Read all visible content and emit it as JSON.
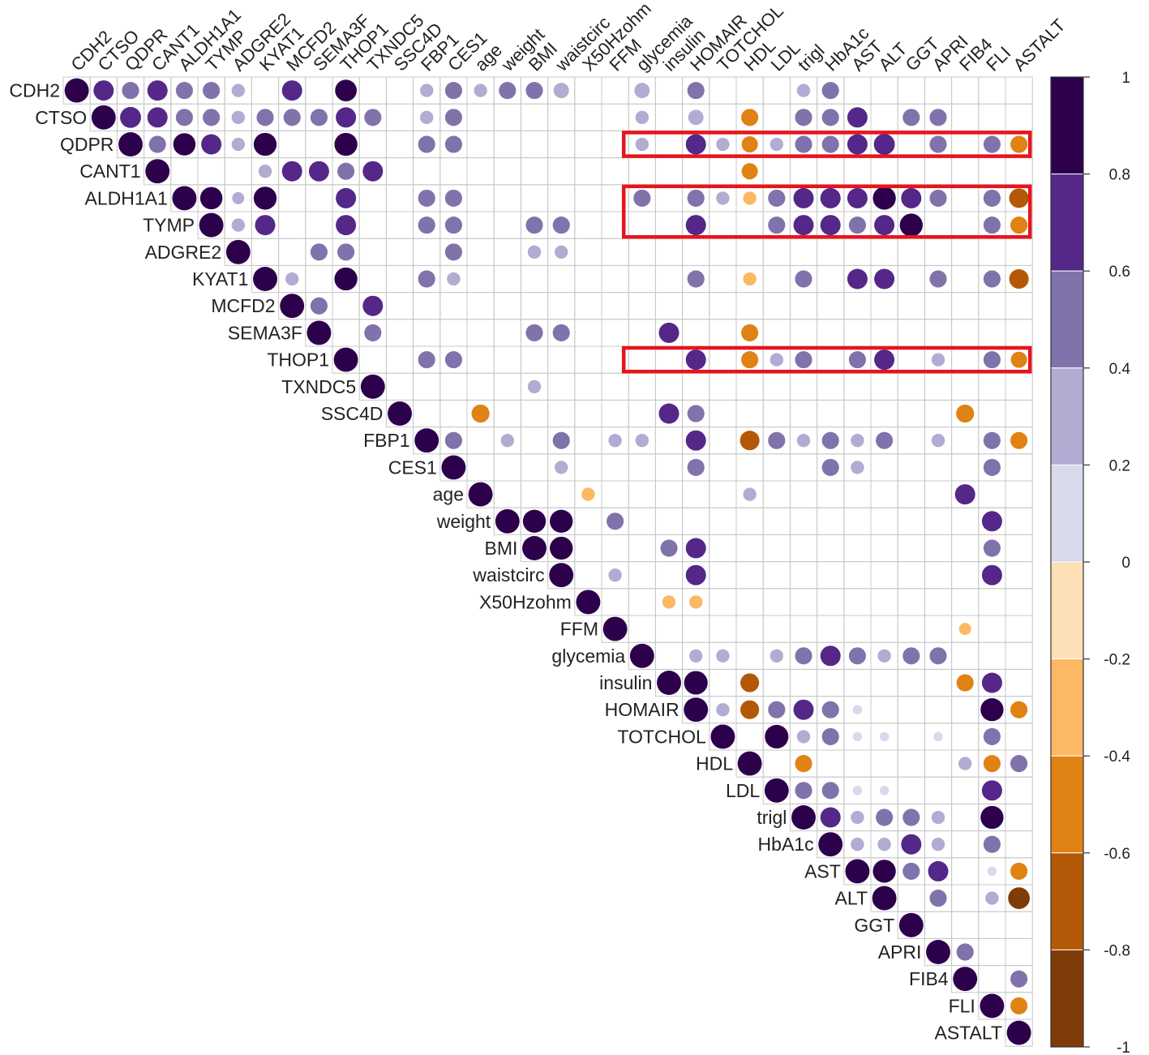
{
  "chart_data": {
    "type": "heatmap",
    "subtype": "correlogram-upper-circles",
    "title": "",
    "variables": [
      "CDH2",
      "CTSO",
      "QDPR",
      "CANT1",
      "ALDH1A1",
      "TYMP",
      "ADGRE2",
      "KYAT1",
      "MCFD2",
      "SEMA3F",
      "THOP1",
      "TXNDC5",
      "SSC4D",
      "FBP1",
      "CES1",
      "age",
      "weight",
      "BMI",
      "waistcirc",
      "X50Hzohm",
      "FFM",
      "glycemia",
      "insulin",
      "HOMAIR",
      "TOTCHOL",
      "HDL",
      "LDL",
      "trigl",
      "HbA1c",
      "AST",
      "ALT",
      "GGT",
      "APRI",
      "FIB4",
      "FLI",
      "ASTALT"
    ],
    "value_range": [
      -1,
      1
    ],
    "colorbar": {
      "ticks": [
        "1",
        "0.8",
        "0.6",
        "0.4",
        "0.2",
        "0",
        "-0.2",
        "-0.4",
        "-0.6",
        "-0.8",
        "-1"
      ],
      "colors": [
        "#2d004b",
        "#542788",
        "#8073ac",
        "#b2abd2",
        "#d8daeb",
        "#fee0b6",
        "#fdb863",
        "#e08214",
        "#b35806",
        "#7f3b08"
      ]
    },
    "highlight_rows": [
      "QDPR",
      "ALDH1A1",
      "TYMP",
      "THOP1"
    ],
    "highlight_color": "#e8141c",
    "cells": [
      [
        "CDH2",
        "CTSO",
        0.7
      ],
      [
        "CDH2",
        "QDPR",
        0.5
      ],
      [
        "CDH2",
        "CANT1",
        0.7
      ],
      [
        "CDH2",
        "ALDH1A1",
        0.5
      ],
      [
        "CDH2",
        "TYMP",
        0.5
      ],
      [
        "CDH2",
        "ADGRE2",
        0.3
      ],
      [
        "CDH2",
        "MCFD2",
        0.7
      ],
      [
        "CDH2",
        "THOP1",
        0.8
      ],
      [
        "CDH2",
        "FBP1",
        0.3
      ],
      [
        "CDH2",
        "CES1",
        0.5
      ],
      [
        "CDH2",
        "age",
        0.3
      ],
      [
        "CDH2",
        "weight",
        0.5
      ],
      [
        "CDH2",
        "BMI",
        0.5
      ],
      [
        "CDH2",
        "waistcirc",
        0.4
      ],
      [
        "CDH2",
        "glycemia",
        0.4
      ],
      [
        "CDH2",
        "HOMAIR",
        0.5
      ],
      [
        "CDH2",
        "trigl",
        0.3
      ],
      [
        "CDH2",
        "HbA1c",
        0.5
      ],
      [
        "CTSO",
        "QDPR",
        0.75
      ],
      [
        "CTSO",
        "CANT1",
        0.7
      ],
      [
        "CTSO",
        "ALDH1A1",
        0.5
      ],
      [
        "CTSO",
        "TYMP",
        0.5
      ],
      [
        "CTSO",
        "ADGRE2",
        0.3
      ],
      [
        "CTSO",
        "KYAT1",
        0.5
      ],
      [
        "CTSO",
        "MCFD2",
        0.5
      ],
      [
        "CTSO",
        "SEMA3F",
        0.5
      ],
      [
        "CTSO",
        "THOP1",
        0.7
      ],
      [
        "CTSO",
        "TXNDC5",
        0.5
      ],
      [
        "CTSO",
        "FBP1",
        0.3
      ],
      [
        "CTSO",
        "CES1",
        0.5
      ],
      [
        "CTSO",
        "glycemia",
        0.3
      ],
      [
        "CTSO",
        "HOMAIR",
        0.4
      ],
      [
        "CTSO",
        "HDL",
        -0.5
      ],
      [
        "CTSO",
        "trigl",
        0.5
      ],
      [
        "CTSO",
        "HbA1c",
        0.5
      ],
      [
        "CTSO",
        "AST",
        0.7
      ],
      [
        "CTSO",
        "GGT",
        0.5
      ],
      [
        "CTSO",
        "APRI",
        0.5
      ],
      [
        "QDPR",
        "CANT1",
        0.5
      ],
      [
        "QDPR",
        "ALDH1A1",
        0.85
      ],
      [
        "QDPR",
        "TYMP",
        0.7
      ],
      [
        "QDPR",
        "ADGRE2",
        0.3
      ],
      [
        "QDPR",
        "KYAT1",
        0.9
      ],
      [
        "QDPR",
        "THOP1",
        0.9
      ],
      [
        "QDPR",
        "FBP1",
        0.5
      ],
      [
        "QDPR",
        "CES1",
        0.5
      ],
      [
        "QDPR",
        "glycemia",
        0.3
      ],
      [
        "QDPR",
        "HOMAIR",
        0.7
      ],
      [
        "QDPR",
        "TOTCHOL",
        0.3
      ],
      [
        "QDPR",
        "HDL",
        -0.45
      ],
      [
        "QDPR",
        "LDL",
        0.3
      ],
      [
        "QDPR",
        "trigl",
        0.5
      ],
      [
        "QDPR",
        "HbA1c",
        0.5
      ],
      [
        "QDPR",
        "AST",
        0.7
      ],
      [
        "QDPR",
        "ALT",
        0.75
      ],
      [
        "QDPR",
        "APRI",
        0.5
      ],
      [
        "QDPR",
        "FLI",
        0.5
      ],
      [
        "QDPR",
        "ASTALT",
        -0.5
      ],
      [
        "CANT1",
        "KYAT1",
        0.3
      ],
      [
        "CANT1",
        "MCFD2",
        0.7
      ],
      [
        "CANT1",
        "SEMA3F",
        0.7
      ],
      [
        "CANT1",
        "THOP1",
        0.5
      ],
      [
        "CANT1",
        "TXNDC5",
        0.7
      ],
      [
        "CANT1",
        "HDL",
        -0.45
      ],
      [
        "ALDH1A1",
        "TYMP",
        0.85
      ],
      [
        "ALDH1A1",
        "ADGRE2",
        0.25
      ],
      [
        "ALDH1A1",
        "KYAT1",
        0.9
      ],
      [
        "ALDH1A1",
        "THOP1",
        0.7
      ],
      [
        "ALDH1A1",
        "FBP1",
        0.5
      ],
      [
        "ALDH1A1",
        "CES1",
        0.5
      ],
      [
        "ALDH1A1",
        "glycemia",
        0.5
      ],
      [
        "ALDH1A1",
        "HOMAIR",
        0.5
      ],
      [
        "ALDH1A1",
        "TOTCHOL",
        0.3
      ],
      [
        "ALDH1A1",
        "HDL",
        -0.3
      ],
      [
        "ALDH1A1",
        "LDL",
        0.5
      ],
      [
        "ALDH1A1",
        "trigl",
        0.7
      ],
      [
        "ALDH1A1",
        "HbA1c",
        0.7
      ],
      [
        "ALDH1A1",
        "AST",
        0.7
      ],
      [
        "ALDH1A1",
        "ALT",
        0.9
      ],
      [
        "ALDH1A1",
        "GGT",
        0.7
      ],
      [
        "ALDH1A1",
        "APRI",
        0.5
      ],
      [
        "ALDH1A1",
        "FLI",
        0.5
      ],
      [
        "ALDH1A1",
        "ASTALT",
        -0.65
      ],
      [
        "TYMP",
        "ADGRE2",
        0.3
      ],
      [
        "TYMP",
        "KYAT1",
        0.7
      ],
      [
        "TYMP",
        "THOP1",
        0.7
      ],
      [
        "TYMP",
        "FBP1",
        0.5
      ],
      [
        "TYMP",
        "CES1",
        0.5
      ],
      [
        "TYMP",
        "BMI",
        0.5
      ],
      [
        "TYMP",
        "waistcirc",
        0.5
      ],
      [
        "TYMP",
        "HOMAIR",
        0.7
      ],
      [
        "TYMP",
        "LDL",
        0.5
      ],
      [
        "TYMP",
        "trigl",
        0.7
      ],
      [
        "TYMP",
        "HbA1c",
        0.7
      ],
      [
        "TYMP",
        "AST",
        0.5
      ],
      [
        "TYMP",
        "ALT",
        0.7
      ],
      [
        "TYMP",
        "GGT",
        0.9
      ],
      [
        "TYMP",
        "FLI",
        0.5
      ],
      [
        "TYMP",
        "ASTALT",
        -0.5
      ],
      [
        "ADGRE2",
        "SEMA3F",
        0.5
      ],
      [
        "ADGRE2",
        "THOP1",
        0.5
      ],
      [
        "ADGRE2",
        "CES1",
        0.5
      ],
      [
        "ADGRE2",
        "BMI",
        0.3
      ],
      [
        "ADGRE2",
        "waistcirc",
        0.3
      ],
      [
        "KYAT1",
        "MCFD2",
        0.3
      ],
      [
        "KYAT1",
        "THOP1",
        0.9
      ],
      [
        "KYAT1",
        "FBP1",
        0.5
      ],
      [
        "KYAT1",
        "CES1",
        0.3
      ],
      [
        "KYAT1",
        "HOMAIR",
        0.5
      ],
      [
        "KYAT1",
        "HDL",
        -0.3
      ],
      [
        "KYAT1",
        "trigl",
        0.5
      ],
      [
        "KYAT1",
        "AST",
        0.7
      ],
      [
        "KYAT1",
        "ALT",
        0.7
      ],
      [
        "KYAT1",
        "APRI",
        0.5
      ],
      [
        "KYAT1",
        "FLI",
        0.5
      ],
      [
        "KYAT1",
        "ASTALT",
        -0.65
      ],
      [
        "MCFD2",
        "SEMA3F",
        0.5
      ],
      [
        "MCFD2",
        "TXNDC5",
        0.7
      ],
      [
        "SEMA3F",
        "TXNDC5",
        0.5
      ],
      [
        "SEMA3F",
        "BMI",
        0.5
      ],
      [
        "SEMA3F",
        "waistcirc",
        0.5
      ],
      [
        "SEMA3F",
        "insulin",
        0.7
      ],
      [
        "SEMA3F",
        "HDL",
        -0.5
      ],
      [
        "THOP1",
        "FBP1",
        0.5
      ],
      [
        "THOP1",
        "CES1",
        0.5
      ],
      [
        "THOP1",
        "HOMAIR",
        0.7
      ],
      [
        "THOP1",
        "HDL",
        -0.5
      ],
      [
        "THOP1",
        "LDL",
        0.3
      ],
      [
        "THOP1",
        "trigl",
        0.5
      ],
      [
        "THOP1",
        "AST",
        0.5
      ],
      [
        "THOP1",
        "ALT",
        0.7
      ],
      [
        "THOP1",
        "APRI",
        0.3
      ],
      [
        "THOP1",
        "FLI",
        0.5
      ],
      [
        "THOP1",
        "ASTALT",
        -0.45
      ],
      [
        "TXNDC5",
        "BMI",
        0.3
      ],
      [
        "SSC4D",
        "age",
        -0.55
      ],
      [
        "SSC4D",
        "insulin",
        0.7
      ],
      [
        "SSC4D",
        "HOMAIR",
        0.5
      ],
      [
        "SSC4D",
        "FIB4",
        -0.55
      ],
      [
        "FBP1",
        "CES1",
        0.5
      ],
      [
        "FBP1",
        "weight",
        0.3
      ],
      [
        "FBP1",
        "waistcirc",
        0.5
      ],
      [
        "FBP1",
        "FFM",
        0.3
      ],
      [
        "FBP1",
        "glycemia",
        0.3
      ],
      [
        "FBP1",
        "HOMAIR",
        0.7
      ],
      [
        "FBP1",
        "HDL",
        -0.65
      ],
      [
        "FBP1",
        "LDL",
        0.5
      ],
      [
        "FBP1",
        "trigl",
        0.3
      ],
      [
        "FBP1",
        "HbA1c",
        0.5
      ],
      [
        "FBP1",
        "AST",
        0.3
      ],
      [
        "FBP1",
        "ALT",
        0.5
      ],
      [
        "FBP1",
        "APRI",
        0.3
      ],
      [
        "FBP1",
        "FLI",
        0.5
      ],
      [
        "FBP1",
        "ASTALT",
        -0.5
      ],
      [
        "CES1",
        "waistcirc",
        0.3
      ],
      [
        "CES1",
        "HOMAIR",
        0.5
      ],
      [
        "CES1",
        "HbA1c",
        0.5
      ],
      [
        "CES1",
        "AST",
        0.3
      ],
      [
        "CES1",
        "FLI",
        0.5
      ],
      [
        "age",
        "X50Hzohm",
        -0.3
      ],
      [
        "age",
        "HDL",
        0.3
      ],
      [
        "age",
        "FIB4",
        0.7
      ],
      [
        "weight",
        "BMI",
        0.9
      ],
      [
        "weight",
        "waistcirc",
        0.9
      ],
      [
        "weight",
        "FFM",
        0.5
      ],
      [
        "weight",
        "FLI",
        0.7
      ],
      [
        "BMI",
        "waistcirc",
        0.9
      ],
      [
        "BMI",
        "insulin",
        0.5
      ],
      [
        "BMI",
        "HOMAIR",
        0.7
      ],
      [
        "BMI",
        "FLI",
        0.5
      ],
      [
        "waistcirc",
        "FFM",
        0.3
      ],
      [
        "waistcirc",
        "HOMAIR",
        0.7
      ],
      [
        "waistcirc",
        "FLI",
        0.7
      ],
      [
        "X50Hzohm",
        "insulin",
        -0.3
      ],
      [
        "X50Hzohm",
        "HOMAIR",
        -0.3
      ],
      [
        "FFM",
        "FIB4",
        -0.25
      ],
      [
        "glycemia",
        "HOMAIR",
        0.3
      ],
      [
        "glycemia",
        "TOTCHOL",
        0.3
      ],
      [
        "glycemia",
        "LDL",
        0.3
      ],
      [
        "glycemia",
        "trigl",
        0.5
      ],
      [
        "glycemia",
        "HbA1c",
        0.7
      ],
      [
        "glycemia",
        "AST",
        0.5
      ],
      [
        "glycemia",
        "ALT",
        0.3
      ],
      [
        "glycemia",
        "GGT",
        0.5
      ],
      [
        "glycemia",
        "APRI",
        0.5
      ],
      [
        "insulin",
        "HOMAIR",
        0.95
      ],
      [
        "insulin",
        "HDL",
        -0.6
      ],
      [
        "insulin",
        "FIB4",
        -0.5
      ],
      [
        "insulin",
        "FLI",
        0.7
      ],
      [
        "HOMAIR",
        "TOTCHOL",
        0.3
      ],
      [
        "HOMAIR",
        "HDL",
        -0.6
      ],
      [
        "HOMAIR",
        "LDL",
        0.5
      ],
      [
        "HOMAIR",
        "trigl",
        0.7
      ],
      [
        "HOMAIR",
        "HbA1c",
        0.5
      ],
      [
        "HOMAIR",
        "AST",
        0.15
      ],
      [
        "HOMAIR",
        "FLI",
        0.9
      ],
      [
        "HOMAIR",
        "ASTALT",
        -0.5
      ],
      [
        "TOTCHOL",
        "LDL",
        0.95
      ],
      [
        "TOTCHOL",
        "trigl",
        0.3
      ],
      [
        "TOTCHOL",
        "HbA1c",
        0.5
      ],
      [
        "TOTCHOL",
        "AST",
        0.15
      ],
      [
        "TOTCHOL",
        "ALT",
        0.15
      ],
      [
        "TOTCHOL",
        "APRI",
        0.15
      ],
      [
        "TOTCHOL",
        "FLI",
        0.5
      ],
      [
        "HDL",
        "trigl",
        -0.5
      ],
      [
        "HDL",
        "FIB4",
        0.3
      ],
      [
        "HDL",
        "FLI",
        -0.5
      ],
      [
        "HDL",
        "ASTALT",
        0.5
      ],
      [
        "LDL",
        "trigl",
        0.5
      ],
      [
        "LDL",
        "HbA1c",
        0.5
      ],
      [
        "LDL",
        "AST",
        0.15
      ],
      [
        "LDL",
        "ALT",
        0.15
      ],
      [
        "LDL",
        "FLI",
        0.7
      ],
      [
        "trigl",
        "HbA1c",
        0.7
      ],
      [
        "trigl",
        "AST",
        0.3
      ],
      [
        "trigl",
        "ALT",
        0.5
      ],
      [
        "trigl",
        "GGT",
        0.5
      ],
      [
        "trigl",
        "APRI",
        0.3
      ],
      [
        "trigl",
        "FLI",
        0.9
      ],
      [
        "HbA1c",
        "AST",
        0.3
      ],
      [
        "HbA1c",
        "ALT",
        0.3
      ],
      [
        "HbA1c",
        "GGT",
        0.7
      ],
      [
        "HbA1c",
        "APRI",
        0.3
      ],
      [
        "HbA1c",
        "FLI",
        0.5
      ],
      [
        "AST",
        "ALT",
        0.9
      ],
      [
        "AST",
        "GGT",
        0.5
      ],
      [
        "AST",
        "APRI",
        0.7
      ],
      [
        "AST",
        "FLI",
        0.15
      ],
      [
        "AST",
        "ASTALT",
        -0.5
      ],
      [
        "ALT",
        "APRI",
        0.5
      ],
      [
        "ALT",
        "FLI",
        0.3
      ],
      [
        "ALT",
        "ASTALT",
        -0.8
      ],
      [
        "APRI",
        "FIB4",
        0.5
      ],
      [
        "FIB4",
        "ASTALT",
        0.5
      ],
      [
        "FLI",
        "ASTALT",
        -0.5
      ]
    ]
  }
}
